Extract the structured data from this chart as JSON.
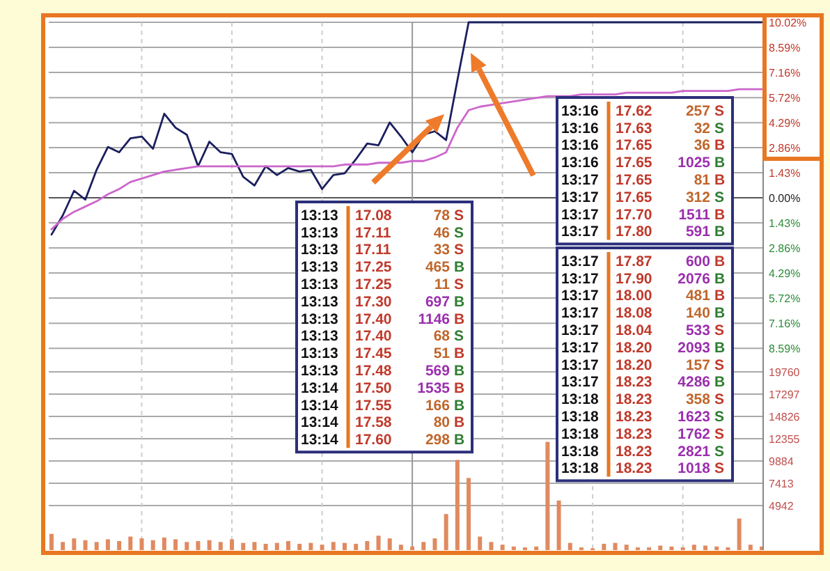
{
  "chart_data": [
    {
      "type": "line",
      "tick_labels": "y",
      "grid": true,
      "categories": [
        null,
        null,
        null,
        null,
        null,
        null,
        null,
        null,
        null,
        null,
        null,
        null,
        null,
        null,
        null,
        null,
        null,
        null,
        null,
        null,
        null,
        null,
        null,
        null,
        null,
        null,
        null,
        null,
        null,
        null,
        null,
        null,
        null,
        null,
        null,
        null,
        null,
        null,
        null,
        null,
        null,
        null,
        null,
        null,
        null,
        null,
        null,
        null,
        null,
        null,
        null,
        null,
        null,
        null,
        null,
        null,
        null,
        null,
        null,
        null,
        null,
        null,
        null,
        null
      ],
      "ylim": [
        -9.3,
        10.02
      ],
      "yticks": [
        {
          "value": 10.02,
          "label": "10.02%"
        },
        {
          "value": 8.59,
          "label": "8.59%"
        },
        {
          "value": 7.16,
          "label": "7.16%"
        },
        {
          "value": 5.72,
          "label": "5.72%"
        },
        {
          "value": 4.29,
          "label": "4.29%"
        },
        {
          "value": 2.86,
          "label": "2.86%"
        },
        {
          "value": 1.43,
          "label": "1.43%"
        },
        {
          "value": 0,
          "label": "0.00%"
        },
        {
          "value": -1.43,
          "label": "1.43%"
        },
        {
          "value": -2.86,
          "label": "2.86%"
        },
        {
          "value": -4.29,
          "label": "4.29%"
        },
        {
          "value": -5.72,
          "label": "5.72%"
        },
        {
          "value": -7.16,
          "label": "7.16%"
        },
        {
          "value": -8.59,
          "label": "8.59%"
        }
      ],
      "series": [
        {
          "color": "#1a1f5e",
          "values": [
            -2.1,
            -1.0,
            0.4,
            -0.1,
            1.6,
            2.9,
            2.6,
            3.4,
            3.5,
            2.8,
            4.8,
            4.0,
            3.6,
            1.8,
            3.2,
            2.6,
            2.5,
            1.2,
            0.7,
            1.8,
            1.3,
            1.7,
            1.5,
            1.6,
            0.5,
            1.3,
            1.4,
            2.2,
            3.1,
            3.0,
            4.3,
            3.5,
            2.6,
            3.6,
            3.8,
            3.3,
            6.7,
            10.02,
            10.02,
            10.02,
            10.02,
            10.02,
            10.02,
            10.02,
            10.02,
            10.02,
            10.02,
            10.02,
            10.02,
            10.02,
            10.02,
            10.02,
            10.02,
            10.02,
            10.02,
            10.02,
            10.02,
            10.02,
            10.02,
            10.02,
            10.02,
            10.02,
            10.02,
            10.02
          ]
        },
        {
          "color": "#cc66cc",
          "values": [
            -1.8,
            -1.2,
            -0.8,
            -0.5,
            -0.2,
            0.2,
            0.5,
            0.9,
            1.1,
            1.3,
            1.5,
            1.6,
            1.7,
            1.8,
            1.8,
            1.8,
            1.8,
            1.8,
            1.8,
            1.8,
            1.8,
            1.8,
            1.8,
            1.8,
            1.8,
            1.8,
            1.9,
            1.9,
            1.9,
            2.0,
            2.0,
            2.0,
            2.1,
            2.1,
            2.3,
            2.6,
            4.0,
            5.0,
            5.2,
            5.3,
            5.4,
            5.5,
            5.6,
            5.7,
            5.8,
            5.8,
            5.8,
            5.9,
            5.9,
            5.9,
            5.9,
            6.0,
            6.0,
            6.0,
            6.0,
            6.0,
            6.1,
            6.1,
            6.1,
            6.1,
            6.1,
            6.2,
            6.2,
            6.2
          ]
        }
      ],
      "annotations": [
        "13:13 17.08 78 S",
        "13:13 17.11 46 S",
        "13:13 17.11 33 S",
        "13:13 17.25 465 B",
        "13:13 17.25 11 S",
        "13:13 17.30 697 B",
        "13:13 17.40 1146 B",
        "13:13 17.40 68 S",
        "13:13 17.45 51 B",
        "13:13 17.48 569 B",
        "13:14 17.50 1535 B",
        "13:14 17.55 166 B",
        "13:14 17.58 80 B",
        "13:14 17.60 298 B",
        "13:16 17.62 257 S",
        "13:16 17.63 32 S",
        "13:16 17.65 36 B",
        "13:16 17.65 1025 B",
        "13:17 17.65 81 B",
        "13:17 17.65 312 S",
        "13:17 17.70 1511 B",
        "13:17 17.80 591 B",
        "13:17 17.87 600 B",
        "13:17 17.90 2076 B",
        "13:17 18.00 481 B",
        "13:17 18.08 140 B",
        "13:17 18.04 533 S",
        "13:17 18.20 2093 B",
        "13:17 18.20 157 S",
        "13:17 18.23 4286 B",
        "13:18 18.23 358 S",
        "13:18 18.23 1623 S",
        "13:18 18.23 1762 S",
        "13:18 18.23 2821 S",
        "13:18 18.23 1018 S"
      ]
    },
    {
      "type": "bar",
      "tick_labels": "y",
      "grid": true,
      "color": "#e08a60",
      "categories": [
        null,
        null,
        null,
        null,
        null,
        null,
        null,
        null,
        null,
        null,
        null,
        null,
        null,
        null,
        null,
        null,
        null,
        null,
        null,
        null,
        null,
        null,
        null,
        null,
        null,
        null,
        null,
        null,
        null,
        null,
        null,
        null,
        null,
        null,
        null,
        null,
        null,
        null,
        null,
        null,
        null,
        null,
        null,
        null,
        null,
        null,
        null,
        null,
        null,
        null,
        null,
        null,
        null,
        null,
        null,
        null,
        null,
        null,
        null,
        null,
        null,
        null,
        null,
        null
      ],
      "ylim": [
        0,
        21000
      ],
      "yticks": [
        19760,
        17297,
        14826,
        12355,
        9884,
        7413,
        4942
      ],
      "values": [
        1800,
        900,
        1300,
        1100,
        900,
        1200,
        1000,
        1500,
        1300,
        1100,
        1400,
        1200,
        900,
        1000,
        1100,
        900,
        1200,
        800,
        900,
        700,
        800,
        1000,
        700,
        800,
        600,
        900,
        800,
        700,
        1000,
        1600,
        1300,
        600,
        400,
        900,
        1300,
        4000,
        10000,
        8000,
        1500,
        900,
        600,
        400,
        300,
        400,
        12000,
        5500,
        800,
        300,
        200,
        700,
        800,
        600,
        300,
        300,
        500,
        400,
        300,
        600,
        500,
        400,
        300,
        3500,
        600,
        400
      ]
    }
  ]
}
